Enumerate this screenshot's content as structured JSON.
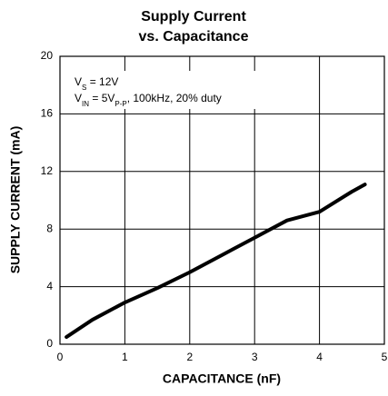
{
  "chart_data": {
    "type": "line",
    "title": [
      "Supply Current",
      "vs. Capacitance"
    ],
    "x_label": "CAPACITANCE (nF)",
    "y_label": "SUPPLY CURRENT (mA)",
    "annotations": [
      [
        "V",
        "S",
        " = 12V"
      ],
      [
        "V",
        "IN",
        " = 5V",
        "P-P",
        ", 100kHz, 20% duty"
      ]
    ],
    "x": [
      0.1,
      0.5,
      1,
      1.5,
      2,
      2.5,
      3,
      3.5,
      4,
      4.5,
      4.7
    ],
    "series": [
      {
        "color": "#000000",
        "values": [
          0.5,
          1.7,
          2.9,
          3.9,
          5.0,
          6.2,
          7.4,
          8.6,
          9.2,
          10.6,
          11.1
        ]
      }
    ],
    "xlim": [
      0,
      5
    ],
    "xticks": [
      0,
      1,
      2,
      3,
      4,
      5
    ],
    "ylim": [
      0,
      20
    ],
    "yticks": [
      0,
      4,
      8,
      12,
      16,
      20
    ],
    "grid": true
  }
}
